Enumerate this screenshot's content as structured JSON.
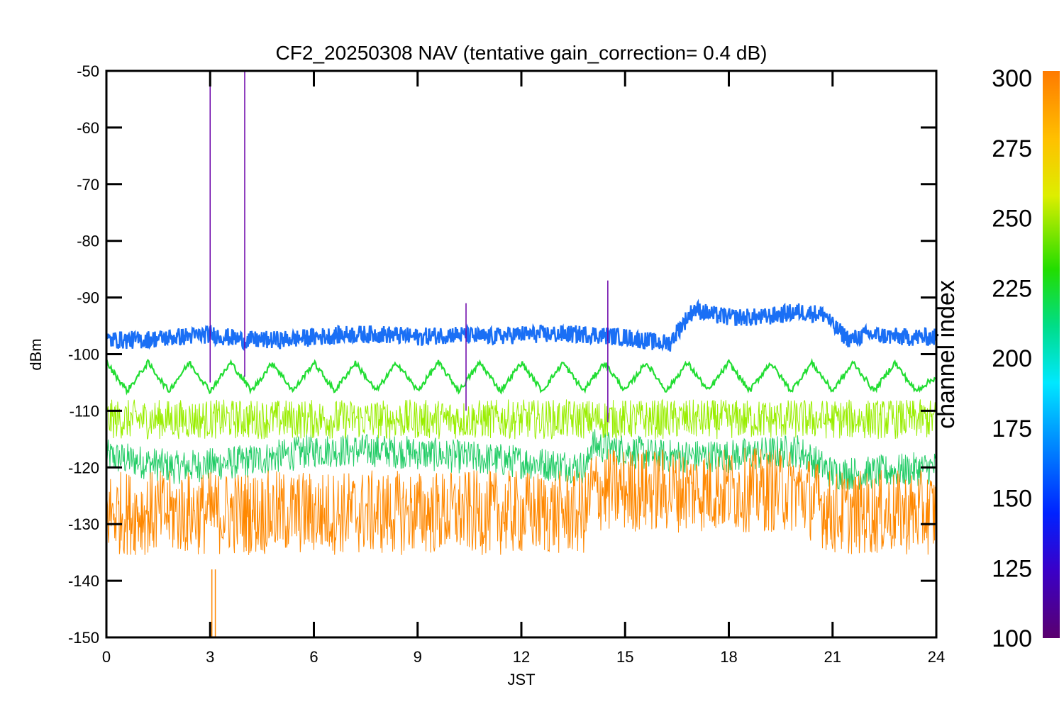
{
  "chart_data": {
    "type": "line",
    "title": "CF2_20250308 NAV (tentative gain_correction=  0.4 dB)",
    "xlabel": "JST",
    "ylabel": "dBm",
    "xlim": [
      0,
      24
    ],
    "ylim": [
      -150,
      -50
    ],
    "x_ticks": [
      "0",
      "3",
      "6",
      "9",
      "12",
      "15",
      "18",
      "21",
      "24"
    ],
    "y_ticks": [
      "-50",
      "-60",
      "-70",
      "-80",
      "-90",
      "-100",
      "-110",
      "-120",
      "-130",
      "-140",
      "-150"
    ],
    "colorbar": {
      "label": "channel index",
      "range": [
        100,
        300
      ],
      "ticks": [
        "300",
        "275",
        "250",
        "225",
        "200",
        "175",
        "150",
        "125",
        "100"
      ]
    },
    "series": [
      {
        "color": "#1a6ff5",
        "x": [
          0,
          1,
          2,
          3,
          4,
          5,
          6,
          7,
          8,
          9,
          10,
          11,
          12,
          13,
          14,
          15,
          16,
          16.3,
          16.5,
          17,
          17.5,
          18,
          19,
          20,
          20.8,
          21,
          21.5,
          22,
          23,
          24
        ],
        "y": [
          -97.5,
          -97.5,
          -97,
          -96.5,
          -97.5,
          -97.5,
          -97,
          -96.5,
          -96.5,
          -97,
          -96.5,
          -97,
          -96.5,
          -96.5,
          -96.5,
          -97,
          -98,
          -98,
          -96,
          -92,
          -93,
          -93.5,
          -93.5,
          -92.5,
          -93,
          -95,
          -97.5,
          -96.5,
          -97,
          -97
        ]
      },
      {
        "color": "#22dd33",
        "x": [
          0,
          0.6,
          1.2,
          1.8,
          2.4,
          3,
          3.6,
          4.2,
          4.8,
          5.4,
          6,
          6.6,
          7.2,
          7.8,
          8.4,
          9,
          9.6,
          10.2,
          10.8,
          11.4,
          12,
          12.6,
          13.2,
          13.8,
          14.4,
          15,
          15.6,
          16.2,
          16.8,
          17.4,
          18,
          18.6,
          19.2,
          19.8,
          20.4,
          21,
          21.6,
          22.2,
          22.8,
          23.4,
          24
        ],
        "y": [
          -101.5,
          -106.5,
          -101.5,
          -106.5,
          -101.5,
          -106.5,
          -101.5,
          -106.5,
          -101.5,
          -106.5,
          -101.5,
          -106.5,
          -101.5,
          -106.5,
          -101.5,
          -106.5,
          -101.5,
          -106.5,
          -101.5,
          -106.5,
          -101.5,
          -106.5,
          -101.5,
          -106.5,
          -101.5,
          -106.5,
          -101.5,
          -106.5,
          -101.5,
          -106.5,
          -101.5,
          -106.5,
          -101.5,
          -106.5,
          -101.5,
          -106.5,
          -101.5,
          -106.5,
          -101.5,
          -106.5,
          -104
        ]
      },
      {
        "color": "#99ee00",
        "x": [
          0,
          3,
          6,
          9,
          12,
          15,
          18,
          21,
          24
        ],
        "y": [
          -111.5,
          -111.5,
          -111.5,
          -111.5,
          -111.5,
          -111.5,
          -111.5,
          -111.5,
          -111.5
        ]
      },
      {
        "color": "#22cc66",
        "x": [
          0,
          2,
          4,
          6,
          8,
          10,
          12,
          13.9,
          14,
          16,
          18,
          20,
          21,
          22,
          24
        ],
        "y": [
          -118,
          -120,
          -119,
          -117,
          -117,
          -118,
          -119,
          -120,
          -116,
          -118,
          -118,
          -117,
          -121,
          -121,
          -120
        ]
      },
      {
        "color": "#ff8800",
        "x": [
          0,
          3,
          6,
          9,
          12,
          13.9,
          14,
          16,
          18,
          20,
          21,
          22,
          24
        ],
        "y": [
          -128,
          -128,
          -128,
          -128,
          -128,
          -128,
          -124,
          -124,
          -124,
          -124,
          -128,
          -128,
          -128
        ]
      }
    ],
    "spikes": [
      {
        "x": 3.0,
        "y_top": -50,
        "y_bottom": -105,
        "color": "#6a00a8"
      },
      {
        "x": 4.0,
        "y_top": -50,
        "y_bottom": -104,
        "color": "#6a00a8"
      },
      {
        "x": 14.5,
        "y_top": -87,
        "y_bottom": -112,
        "color": "#6a00a8"
      },
      {
        "x": 10.4,
        "y_top": -91,
        "y_bottom": -110,
        "color": "#6a00a8"
      },
      {
        "x": 3.05,
        "y_top": -138,
        "y_bottom": -150,
        "color": "#ff8800"
      },
      {
        "x": 3.15,
        "y_top": -138,
        "y_bottom": -150,
        "color": "#ff8800"
      }
    ]
  }
}
